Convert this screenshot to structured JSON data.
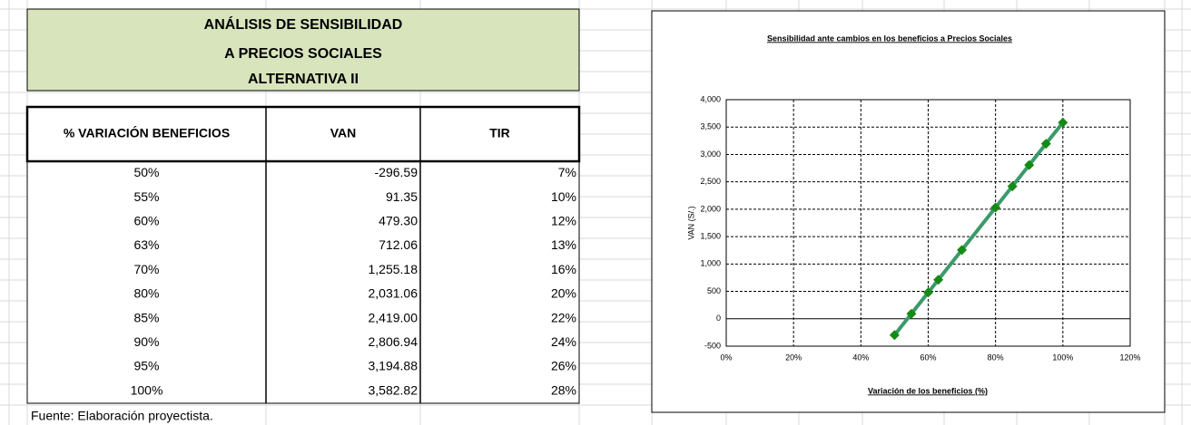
{
  "header": {
    "lines": [
      "ANÁLISIS DE SENSIBILIDAD",
      "A PRECIOS SOCIALES",
      "ALTERNATIVA II"
    ]
  },
  "table": {
    "columns": [
      "% VARIACIÓN BENEFICIOS",
      "VAN",
      "TIR"
    ],
    "rows": [
      [
        "50%",
        "-296.59",
        "7%"
      ],
      [
        "55%",
        "91.35",
        "10%"
      ],
      [
        "60%",
        "479.30",
        "12%"
      ],
      [
        "63%",
        "712.06",
        "13%"
      ],
      [
        "70%",
        "1,255.18",
        "16%"
      ],
      [
        "80%",
        "2,031.06",
        "20%"
      ],
      [
        "85%",
        "2,419.00",
        "22%"
      ],
      [
        "90%",
        "2,806.94",
        "24%"
      ],
      [
        "95%",
        "3,194.88",
        "26%"
      ],
      [
        "100%",
        "3,582.82",
        "28%"
      ]
    ],
    "negative_color": "#ff0000"
  },
  "source": "Fuente: Elaboración proyectista.",
  "chart_data": {
    "type": "line",
    "title": "Sensibilidad  ante cambios  en los beneficios  a Precios Sociales",
    "x_label": "Variación de los beneficios  (%)",
    "y_label": "VAN (S/.)",
    "x": [
      50,
      55,
      60,
      63,
      70,
      80,
      85,
      90,
      95,
      100
    ],
    "series": [
      {
        "name": "VAN",
        "color": "#3a9a6a",
        "marker_color": "#158a15",
        "values": [
          -296.59,
          91.35,
          479.3,
          712.06,
          1255.18,
          2031.06,
          2419.0,
          2806.94,
          3194.88,
          3582.82
        ]
      }
    ],
    "xlim": [
      0,
      120
    ],
    "xticks": [
      {
        "value": 0,
        "label": "0%"
      },
      {
        "value": 20,
        "label": "20%"
      },
      {
        "value": 40,
        "label": "40%"
      },
      {
        "value": 60,
        "label": "60%"
      },
      {
        "value": 80,
        "label": "80%"
      },
      {
        "value": 100,
        "label": "100%"
      },
      {
        "value": 120,
        "label": "120%"
      }
    ],
    "ylim": [
      -500,
      4000
    ],
    "yticks": [
      -500,
      0,
      500,
      {
        "value": 1000,
        "label": "1,000"
      },
      {
        "value": 1500,
        "label": "1,500"
      },
      {
        "value": 2000,
        "label": "2,000"
      },
      {
        "value": 2500,
        "label": "2,500"
      },
      {
        "value": 3000,
        "label": "3,000"
      },
      {
        "value": 3500,
        "label": "3,500"
      },
      {
        "value": 4000,
        "label": "4,000"
      }
    ],
    "grid": true
  }
}
